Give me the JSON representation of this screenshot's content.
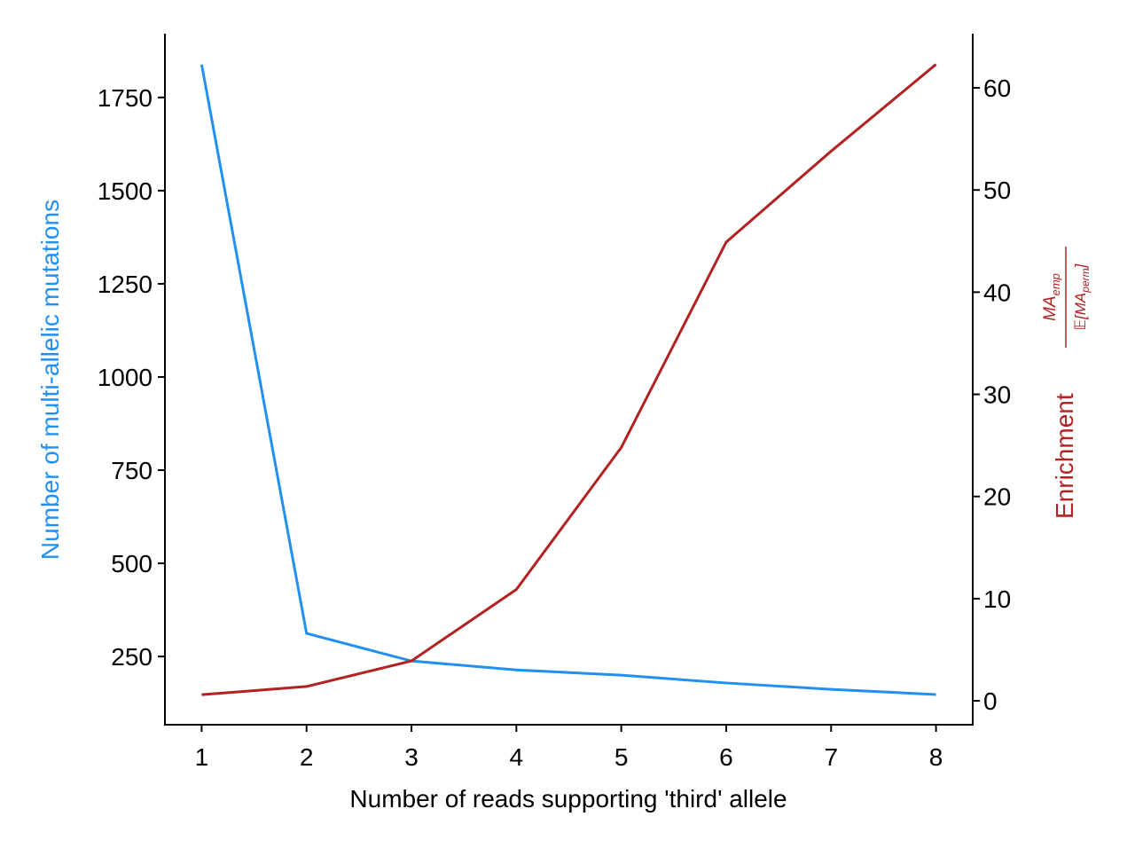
{
  "chart_data": {
    "type": "line",
    "xlabel": "Number of reads supporting 'third' allele",
    "ylabel": "Number of multi-allelic mutations",
    "y2label": "Enrichment",
    "y2label_fraction": {
      "numerator": {
        "base": "MA",
        "sub": "emp"
      },
      "denominator": {
        "base": "𝔼[MA",
        "sub": "perm",
        "tail": "]"
      }
    },
    "x": [
      1,
      2,
      3,
      4,
      5,
      6,
      7,
      8
    ],
    "xlim": [
      0.65,
      8.35
    ],
    "xticks": [
      1,
      2,
      3,
      4,
      5,
      6,
      7,
      8
    ],
    "ylim": [
      67,
      1921
    ],
    "yticks": [
      250,
      500,
      750,
      1000,
      1250,
      1500,
      1750
    ],
    "y2lim": [
      -2.34,
      65.3
    ],
    "y2ticks": [
      0,
      10,
      20,
      30,
      40,
      50,
      60
    ],
    "ylabel_color": "#2190f0",
    "y2label_color": "#b22222",
    "series": [
      {
        "name": "Number of multi-allelic mutations",
        "color": "#2190f0",
        "values": [
          1838,
          312,
          238,
          214,
          200,
          179,
          162,
          148
        ]
      },
      {
        "name": "Enrichment",
        "color": "#b22222",
        "axis": "y2",
        "values": [
          0.6,
          1.4,
          3.9,
          10.9,
          24.8,
          44.9,
          53.8,
          62.3
        ]
      }
    ]
  }
}
